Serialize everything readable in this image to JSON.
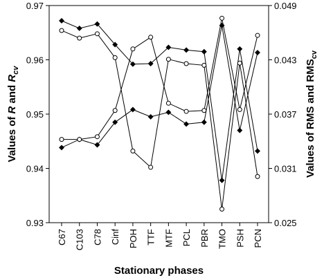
{
  "chart_data": {
    "type": "line",
    "categories": [
      "C67",
      "C103",
      "C78",
      "Cinf",
      "POH",
      "TTF",
      "MTF",
      "PCL",
      "PBR",
      "TMO",
      "PSH",
      "PCN"
    ],
    "xlabel": "Stationary phases",
    "ylabel_left": {
      "pre": "Values of ",
      "v1": "R",
      "mid": " and ",
      "v2": "R",
      "sub": "cv"
    },
    "ylabel_right": {
      "pre": "Values of RMS and RMS",
      "sub": "cv"
    },
    "y_left": {
      "lim": [
        0.93,
        0.97
      ],
      "ticks": [
        "0.93",
        "0.94",
        "0.95",
        "0.96",
        "0.97"
      ]
    },
    "y_right": {
      "lim": [
        0.025,
        0.049
      ],
      "ticks": [
        "0.025",
        "0.031",
        "0.037",
        "0.043",
        "0.049"
      ]
    },
    "grid": false,
    "series": [
      {
        "axis": "left",
        "marker": "filled-diamond",
        "values": [
          0.9672,
          0.9658,
          0.9666,
          0.9628,
          0.9592,
          0.9593,
          0.9623,
          0.9618,
          0.9615,
          0.9378,
          0.962,
          0.9432
        ]
      },
      {
        "axis": "left",
        "marker": "open-circle",
        "values": [
          0.9654,
          0.964,
          0.9648,
          0.9604,
          0.9432,
          0.9402,
          0.9601,
          0.9593,
          0.959,
          0.9325,
          0.9594,
          0.9385
        ]
      },
      {
        "axis": "right",
        "marker": "filled-diamond",
        "values": [
          0.0333,
          0.0342,
          0.0336,
          0.0361,
          0.0375,
          0.0367,
          0.0372,
          0.0359,
          0.0361,
          0.0468,
          0.0352,
          0.0438
        ]
      },
      {
        "axis": "right",
        "marker": "open-circle",
        "values": [
          0.0342,
          0.0342,
          0.0345,
          0.0374,
          0.0442,
          0.0455,
          0.0382,
          0.0373,
          0.0374,
          0.0476,
          0.0375,
          0.0457
        ]
      }
    ]
  }
}
